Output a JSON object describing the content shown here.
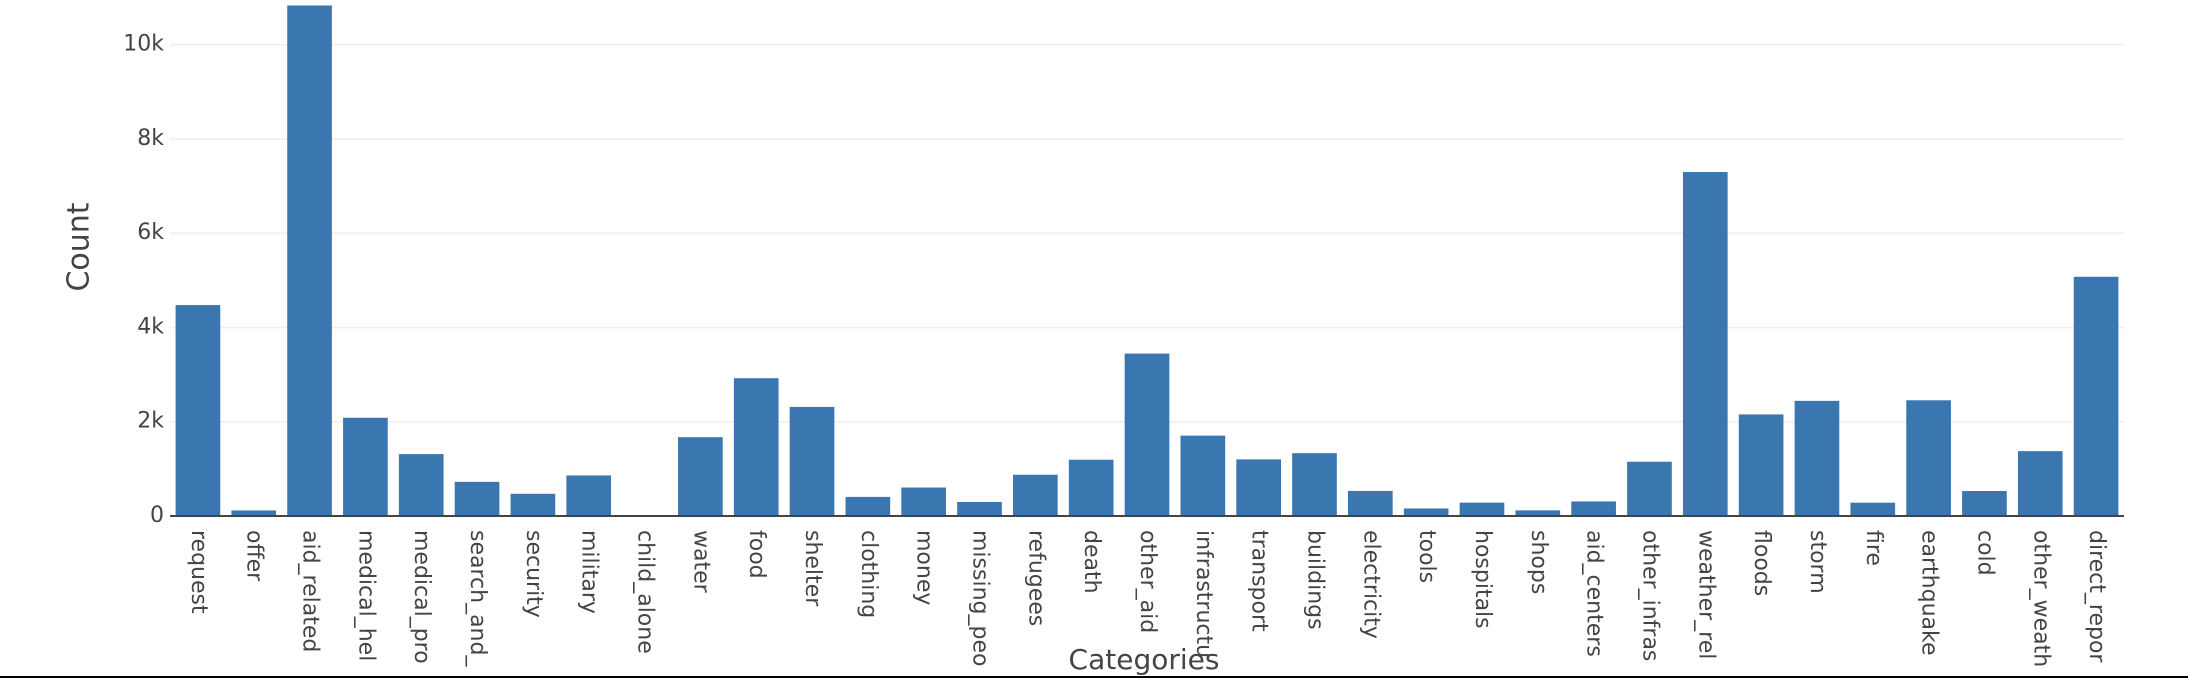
{
  "chart_data": {
    "type": "bar",
    "x_label": "Categories",
    "y_label": "Count",
    "categories": [
      "request",
      "offer",
      "aid_related",
      "medical_hel",
      "medical_pro",
      "search_and_",
      "security",
      "military",
      "child_alone",
      "water",
      "food",
      "shelter",
      "clothing",
      "money",
      "missing_peo",
      "refugees",
      "death",
      "other_aid",
      "infrastructu",
      "transport",
      "buildings",
      "electricity",
      "tools",
      "hospitals",
      "shops",
      "aid_centers",
      "other_infras",
      "weather_rel",
      "floods",
      "storm",
      "fire",
      "earthquake",
      "cold",
      "other_weath",
      "direct_repor"
    ],
    "values": [
      4474,
      118,
      10830,
      2084,
      1313,
      724,
      471,
      860,
      0,
      1672,
      2923,
      2314,
      405,
      604,
      298,
      875,
      1194,
      3446,
      1705,
      1201,
      1333,
      532,
      159,
      283,
      120,
      309,
      1151,
      7297,
      2155,
      2443,
      282,
      2455,
      530,
      1376,
      5075
    ],
    "color": "#3a76b0",
    "ylim": [
      0,
      10900
    ],
    "yticks": [
      0,
      {
        "value": 2000,
        "label": "2k"
      },
      {
        "value": 4000,
        "label": "4k"
      },
      {
        "value": 6000,
        "label": "6k"
      },
      {
        "value": 8000,
        "label": "8k"
      },
      {
        "value": 10000,
        "label": "10k"
      }
    ],
    "grid": true
  }
}
